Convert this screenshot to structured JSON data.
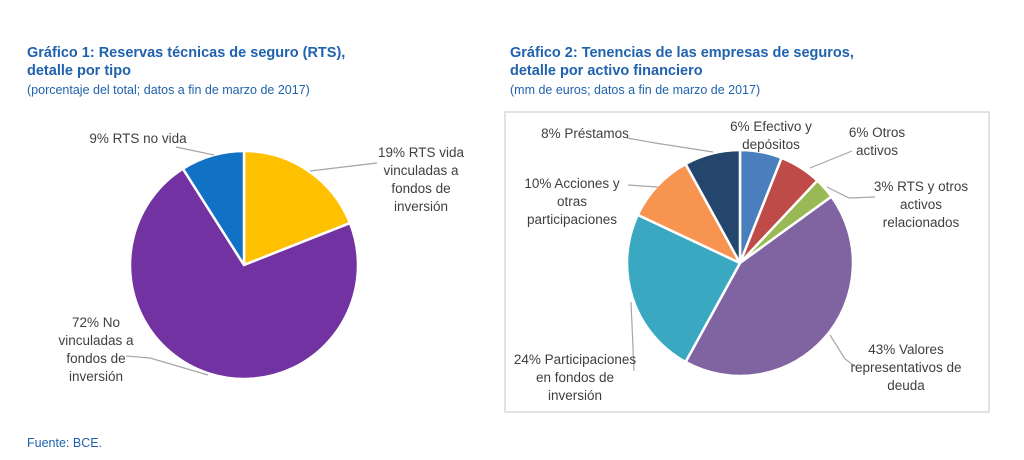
{
  "source": "Fuente: BCE.",
  "colors": {
    "title_blue": "#2062AE",
    "label_gray": "#3F3F3F",
    "leader_gray": "#A6A6A6",
    "frame_border": "#D9D9D9"
  },
  "chart_data": [
    {
      "type": "pie",
      "title": "Gráfico 1: Reservas técnicas de seguro (RTS), detalle por tipo",
      "title_lines": [
        "Gráfico 1: Reservas técnicas de seguro (RTS),",
        "detalle por tipo"
      ],
      "subtitle": "(porcentaje del total; datos a fin de marzo de 2017)",
      "legend_position": "callouts",
      "start_angle_deg": 0,
      "clockwise": true,
      "slices": [
        {
          "label": "RTS vida vinculadas a fondos de inversion",
          "pct": 19,
          "color": "#FFC000",
          "callout": "19% RTS vida\nvinculadas a\nfondos de\ninversión"
        },
        {
          "label": "No vinculadas a fondos de inversion",
          "pct": 72,
          "color": "#7232A2",
          "callout": "72% No\nvinculadas a\nfondos de\ninversión"
        },
        {
          "label": "RTS no vida",
          "pct": 9,
          "color": "#1171C4",
          "callout": "9% RTS no vida"
        }
      ]
    },
    {
      "type": "pie",
      "title": "Gráfico 2: Tenencias de las empresas de seguros, detalle por activo financiero",
      "title_lines": [
        "Gráfico 2: Tenencias de las empresas de seguros,",
        "detalle por activo financiero"
      ],
      "subtitle": "(mm de euros; datos a fin de marzo de 2017)",
      "legend_position": "callouts",
      "start_angle_deg": 0,
      "clockwise": true,
      "slices": [
        {
          "label": "Efectivo y depositos",
          "pct": 6,
          "color": "#4A7EBD",
          "callout": "6% Efectivo y\ndepósitos"
        },
        {
          "label": "Otros activos",
          "pct": 6,
          "color": "#BE4B48",
          "callout": "6% Otros\nactivos"
        },
        {
          "label": "RTS y otros activos relacionados",
          "pct": 3,
          "color": "#98B954",
          "callout": "3% RTS y otros\nactivos\nrelacionados"
        },
        {
          "label": "Valores representativos de deuda",
          "pct": 43,
          "color": "#8064A2",
          "callout": "43% Valores\nrepresentativos de\ndeuda"
        },
        {
          "label": "Participaciones en fondos de inversion",
          "pct": 24,
          "color": "#3BA8C2",
          "callout": "24% Participaciones\nen fondos de\ninversión"
        },
        {
          "label": "Acciones y otras participaciones",
          "pct": 10,
          "color": "#F79450",
          "callout": "10% Acciones y\notras\nparticipaciones"
        },
        {
          "label": "Prestamos",
          "pct": 8,
          "color": "#24466D",
          "callout": "8% Préstamos"
        }
      ]
    }
  ]
}
